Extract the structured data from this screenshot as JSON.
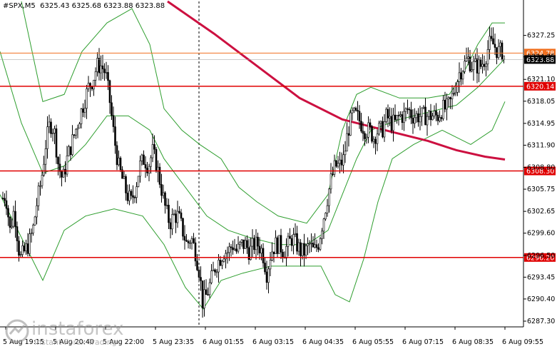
{
  "header": {
    "symbol": "#SPX,M5",
    "ohlc": "6325.43 6325.68 6323.88 6323.88"
  },
  "watermark": {
    "brand": "instaforex",
    "tagline": "Instant Forex Trading"
  },
  "chart_data": {
    "type": "candlestick",
    "symbol": "#SPX",
    "timeframe": "M5",
    "ylim": [
      6286.5,
      6332.0
    ],
    "y_ticks": [
      "6327.25",
      "6324.25",
      "6321.10",
      "6318.05",
      "6314.95",
      "6311.90",
      "6308.80",
      "6305.75",
      "6302.65",
      "6299.60",
      "6296.50",
      "6293.45",
      "6290.40",
      "6287.30"
    ],
    "x_ticks": [
      "5 Aug 19:15",
      "5 Aug 20:40",
      "5 Aug 22:00",
      "5 Aug 23:35",
      "6 Aug 01:55",
      "6 Aug 03:15",
      "6 Aug 04:35",
      "6 Aug 05:55",
      "6 Aug 07:15",
      "6 Aug 08:35",
      "6 Aug 09:55"
    ],
    "levels": [
      {
        "label": "6320.14",
        "value": 6320.14,
        "color": "#e00000"
      },
      {
        "label": "6308.30",
        "value": 6308.3,
        "color": "#e00000"
      },
      {
        "label": "6296.20",
        "value": 6296.2,
        "color": "#e00000"
      }
    ],
    "ask_line": {
      "label": "6324.78",
      "value": 6324.78,
      "color": "#f07020"
    },
    "current_price": {
      "label": "6323.88",
      "value": 6323.88
    },
    "close_path": [
      [
        0,
        6304
      ],
      [
        8,
        6305
      ],
      [
        14,
        6300
      ],
      [
        20,
        6303
      ],
      [
        28,
        6296
      ],
      [
        34,
        6297
      ],
      [
        40,
        6298
      ],
      [
        46,
        6300
      ],
      [
        52,
        6304
      ],
      [
        58,
        6307
      ],
      [
        64,
        6312
      ],
      [
        70,
        6315
      ],
      [
        76,
        6314
      ],
      [
        82,
        6309
      ],
      [
        88,
        6307
      ],
      [
        94,
        6310
      ],
      [
        100,
        6312
      ],
      [
        106,
        6314
      ],
      [
        112,
        6316
      ],
      [
        118,
        6318
      ],
      [
        124,
        6320
      ],
      [
        130,
        6321
      ],
      [
        136,
        6323
      ],
      [
        142,
        6323
      ],
      [
        148,
        6322
      ],
      [
        154,
        6318
      ],
      [
        160,
        6313
      ],
      [
        166,
        6309
      ],
      [
        172,
        6307
      ],
      [
        178,
        6305
      ],
      [
        184,
        6304
      ],
      [
        190,
        6306
      ],
      [
        196,
        6309
      ],
      [
        202,
        6310
      ],
      [
        208,
        6309
      ],
      [
        214,
        6311
      ],
      [
        220,
        6309
      ],
      [
        226,
        6306
      ],
      [
        232,
        6303
      ],
      [
        238,
        6301
      ],
      [
        244,
        6302
      ],
      [
        250,
        6302
      ],
      [
        256,
        6300
      ],
      [
        262,
        6298
      ],
      [
        268,
        6299
      ],
      [
        274,
        6297
      ],
      [
        280,
        6294
      ],
      [
        284,
        6290
      ],
      [
        290,
        6291
      ],
      [
        296,
        6293
      ],
      [
        302,
        6295
      ],
      [
        308,
        6296
      ],
      [
        314,
        6297
      ],
      [
        320,
        6297
      ],
      [
        326,
        6298
      ],
      [
        332,
        6297
      ],
      [
        338,
        6298
      ],
      [
        344,
        6298
      ],
      [
        350,
        6297
      ],
      [
        356,
        6298
      ],
      [
        362,
        6298
      ],
      [
        368,
        6297
      ],
      [
        374,
        6294
      ],
      [
        380,
        6297
      ],
      [
        386,
        6298
      ],
      [
        392,
        6298
      ],
      [
        398,
        6297
      ],
      [
        404,
        6298
      ],
      [
        410,
        6299
      ],
      [
        416,
        6298
      ],
      [
        422,
        6297
      ],
      [
        428,
        6297
      ],
      [
        434,
        6298
      ],
      [
        440,
        6297
      ],
      [
        446,
        6298
      ],
      [
        452,
        6301
      ],
      [
        458,
        6304
      ],
      [
        464,
        6307
      ],
      [
        470,
        6309
      ],
      [
        476,
        6309
      ],
      [
        482,
        6310
      ],
      [
        488,
        6314
      ],
      [
        494,
        6316
      ],
      [
        500,
        6316
      ],
      [
        506,
        6315
      ],
      [
        512,
        6314
      ],
      [
        518,
        6314
      ],
      [
        524,
        6313
      ],
      [
        530,
        6314
      ],
      [
        536,
        6314
      ],
      [
        542,
        6316
      ],
      [
        548,
        6315
      ],
      [
        554,
        6315
      ],
      [
        560,
        6316
      ],
      [
        566,
        6316
      ],
      [
        572,
        6317
      ],
      [
        578,
        6316
      ],
      [
        584,
        6316
      ],
      [
        590,
        6316
      ],
      [
        596,
        6316
      ],
      [
        602,
        6316
      ],
      [
        608,
        6316
      ],
      [
        614,
        6316
      ],
      [
        620,
        6317
      ],
      [
        626,
        6317
      ],
      [
        632,
        6318
      ],
      [
        638,
        6320
      ],
      [
        644,
        6322
      ],
      [
        650,
        6323
      ],
      [
        656,
        6324
      ],
      [
        662,
        6323
      ],
      [
        668,
        6323
      ],
      [
        674,
        6323
      ],
      [
        680,
        6324
      ],
      [
        686,
        6326
      ],
      [
        692,
        6326
      ],
      [
        698,
        6325
      ],
      [
        704,
        6325
      ],
      [
        708,
        6324
      ]
    ],
    "moving_average": {
      "color": "#cc1040",
      "points": [
        [
          235,
          6332
        ],
        [
          300,
          6327.5
        ],
        [
          360,
          6323
        ],
        [
          420,
          6318.5
        ],
        [
          480,
          6315.5
        ],
        [
          540,
          6314
        ],
        [
          600,
          6312.5
        ],
        [
          640,
          6311.2
        ],
        [
          680,
          6310.3
        ],
        [
          708,
          6309.9
        ]
      ]
    },
    "bollinger": {
      "color": "#2e9e2e",
      "upper": [
        [
          30,
          6332
        ],
        [
          60,
          6318
        ],
        [
          90,
          6319
        ],
        [
          115,
          6325
        ],
        [
          150,
          6329
        ],
        [
          185,
          6331
        ],
        [
          210,
          6326
        ],
        [
          230,
          6317
        ],
        [
          255,
          6314
        ],
        [
          280,
          6312
        ],
        [
          310,
          6310
        ],
        [
          335,
          6306
        ],
        [
          360,
          6304
        ],
        [
          390,
          6302
        ],
        [
          430,
          6301
        ],
        [
          460,
          6305
        ],
        [
          480,
          6314
        ],
        [
          500,
          6319
        ],
        [
          520,
          6320
        ],
        [
          560,
          6318.5
        ],
        [
          600,
          6318.5
        ],
        [
          630,
          6319
        ],
        [
          650,
          6322
        ],
        [
          670,
          6326
        ],
        [
          690,
          6329
        ],
        [
          708,
          6329
        ]
      ],
      "middle": [
        [
          0,
          6325
        ],
        [
          30,
          6315
        ],
        [
          60,
          6308
        ],
        [
          90,
          6309
        ],
        [
          120,
          6312
        ],
        [
          150,
          6316
        ],
        [
          180,
          6316
        ],
        [
          210,
          6314
        ],
        [
          230,
          6310
        ],
        [
          260,
          6306
        ],
        [
          290,
          6302
        ],
        [
          320,
          6300
        ],
        [
          350,
          6299
        ],
        [
          390,
          6298
        ],
        [
          430,
          6298
        ],
        [
          460,
          6300
        ],
        [
          480,
          6305
        ],
        [
          500,
          6310
        ],
        [
          520,
          6314
        ],
        [
          560,
          6315.5
        ],
        [
          600,
          6316.5
        ],
        [
          640,
          6317.5
        ],
        [
          670,
          6320
        ],
        [
          708,
          6324
        ]
      ],
      "lower": [
        [
          0,
          6305
        ],
        [
          30,
          6299
        ],
        [
          60,
          6293
        ],
        [
          90,
          6300
        ],
        [
          120,
          6302
        ],
        [
          160,
          6303
        ],
        [
          200,
          6302
        ],
        [
          230,
          6298
        ],
        [
          260,
          6292
        ],
        [
          285,
          6289
        ],
        [
          310,
          6293
        ],
        [
          340,
          6294
        ],
        [
          380,
          6295
        ],
        [
          420,
          6295
        ],
        [
          450,
          6295
        ],
        [
          470,
          6291
        ],
        [
          490,
          6290
        ],
        [
          510,
          6296
        ],
        [
          530,
          6304
        ],
        [
          550,
          6310
        ],
        [
          580,
          6312
        ],
        [
          620,
          6314
        ],
        [
          640,
          6313
        ],
        [
          660,
          6312
        ],
        [
          690,
          6314
        ],
        [
          708,
          6318
        ]
      ]
    },
    "vertical_marker_x": 279
  }
}
